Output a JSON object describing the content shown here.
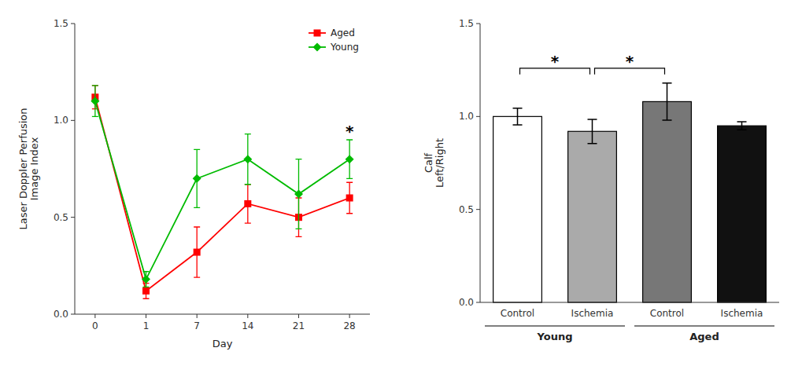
{
  "chart_data": [
    {
      "type": "line",
      "categories": [
        "0",
        "1",
        "7",
        "14",
        "21",
        "28"
      ],
      "series": [
        {
          "name": "Aged",
          "color": "#FF0000",
          "marker": "square",
          "values": [
            1.12,
            0.12,
            0.32,
            0.57,
            0.5,
            0.6
          ],
          "errors": [
            0.06,
            0.04,
            0.13,
            0.1,
            0.1,
            0.08
          ]
        },
        {
          "name": "Young",
          "color": "#00BB00",
          "marker": "diamond",
          "values": [
            1.1,
            0.18,
            0.7,
            0.8,
            0.62,
            0.8
          ],
          "errors": [
            0.08,
            0.04,
            0.15,
            0.13,
            0.18,
            0.1
          ]
        }
      ],
      "xlabel": "Day",
      "ylabel": "Laser Doppler Perfusion\nImage Index",
      "ylim": [
        0.0,
        1.5
      ],
      "yticks": [
        {
          "value": 0.0,
          "label": "0.0"
        },
        0.5,
        {
          "value": 1.0,
          "label": "1.0"
        },
        1.5
      ],
      "legend": "upper right",
      "grid": false,
      "annotations": [
        {
          "text": "*",
          "x": "28"
        }
      ]
    },
    {
      "type": "bar",
      "categories": [
        "Control",
        "Ischemia",
        "Control",
        "Ischemia"
      ],
      "values": [
        1.0,
        0.92,
        1.08,
        0.95
      ],
      "errors": [
        0.045,
        0.065,
        0.1,
        0.022
      ],
      "colors": [
        "#FFFFFF",
        "#AAAAAA",
        "#777777",
        "#111111"
      ],
      "ylabel": "Calf\nLeft/Right",
      "ylim": [
        0.0,
        1.5
      ],
      "yticks": [
        {
          "value": 0.0,
          "label": "0.0"
        },
        0.5,
        {
          "value": 1.0,
          "label": "1.0"
        },
        1.5
      ],
      "group_labels": [
        "Young",
        "Aged"
      ],
      "grid": false,
      "annotations": [
        {
          "text": "*",
          "x1": 1,
          "x2": 2,
          "y": 1.26
        },
        {
          "text": "*",
          "x1": 2,
          "x2": 3,
          "y": 1.26
        }
      ]
    }
  ]
}
